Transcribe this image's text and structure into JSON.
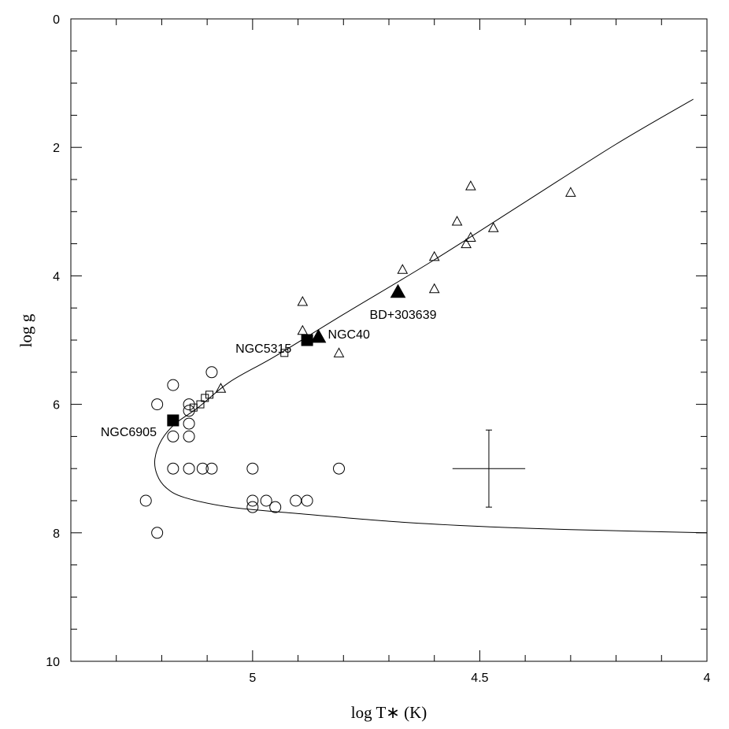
{
  "chart_data": {
    "type": "scatter",
    "xlabel": "log T∗ (K)",
    "ylabel": "log g",
    "xlim": [
      5.4,
      4.0
    ],
    "ylim": [
      0,
      10
    ],
    "x_ticks": [
      5,
      4.5,
      4
    ],
    "y_ticks": [
      0,
      2,
      4,
      6,
      8,
      10
    ],
    "x_minor_step": 0.1,
    "y_minor_step": 0.5,
    "y_inverted": true,
    "x_inverted": true,
    "grid": false,
    "series": [
      {
        "marker": "open-circle",
        "points": [
          [
            5.21,
            6.0
          ],
          [
            5.175,
            5.7
          ],
          [
            5.14,
            6.0
          ],
          [
            5.14,
            6.1
          ],
          [
            5.14,
            6.3
          ],
          [
            5.14,
            6.5
          ],
          [
            5.175,
            6.5
          ],
          [
            5.09,
            5.5
          ],
          [
            5.175,
            7.0
          ],
          [
            5.14,
            7.0
          ],
          [
            5.11,
            7.0
          ],
          [
            5.09,
            7.0
          ],
          [
            5.0,
            7.0
          ],
          [
            4.81,
            7.0
          ],
          [
            5.235,
            7.5
          ],
          [
            5.0,
            7.5
          ],
          [
            5.0,
            7.6
          ],
          [
            4.97,
            7.5
          ],
          [
            4.95,
            7.6
          ],
          [
            4.905,
            7.5
          ],
          [
            4.88,
            7.5
          ],
          [
            5.21,
            8.0
          ]
        ]
      },
      {
        "marker": "open-square",
        "points": [
          [
            5.13,
            6.05
          ],
          [
            5.115,
            6.0
          ],
          [
            5.105,
            5.9
          ],
          [
            5.095,
            5.85
          ],
          [
            4.93,
            5.2
          ]
        ]
      },
      {
        "marker": "open-triangle",
        "points": [
          [
            4.52,
            2.6
          ],
          [
            4.3,
            2.7
          ],
          [
            4.55,
            3.15
          ],
          [
            4.47,
            3.25
          ],
          [
            4.52,
            3.4
          ],
          [
            4.53,
            3.5
          ],
          [
            4.6,
            3.7
          ],
          [
            4.67,
            3.9
          ],
          [
            4.6,
            4.2
          ],
          [
            4.89,
            4.4
          ],
          [
            4.89,
            4.85
          ],
          [
            4.81,
            5.2
          ],
          [
            5.07,
            5.75
          ]
        ]
      },
      {
        "marker": "filled-square",
        "points": [
          [
            5.175,
            6.25
          ],
          [
            4.88,
            5.0
          ]
        ]
      },
      {
        "marker": "filled-triangle",
        "points": [
          [
            4.855,
            4.95
          ],
          [
            4.68,
            4.25
          ]
        ]
      }
    ],
    "annotations": [
      {
        "text": "NGC6905",
        "x": 5.18,
        "y": 6.25
      },
      {
        "text": "NGC5315",
        "x": 4.89,
        "y": 5.0
      },
      {
        "text": "NGC40",
        "x": 4.855,
        "y": 4.95
      },
      {
        "text": "BD+303639",
        "x": 4.68,
        "y": 4.25
      }
    ],
    "track": [
      [
        4.03,
        1.25
      ],
      [
        4.2,
        1.95
      ],
      [
        4.4,
        2.85
      ],
      [
        4.6,
        3.75
      ],
      [
        4.8,
        4.6
      ],
      [
        4.95,
        5.25
      ],
      [
        5.05,
        5.65
      ],
      [
        5.12,
        6.05
      ],
      [
        5.17,
        6.3
      ],
      [
        5.2,
        6.55
      ],
      [
        5.215,
        6.85
      ],
      [
        5.21,
        7.1
      ],
      [
        5.19,
        7.3
      ],
      [
        5.15,
        7.45
      ],
      [
        5.05,
        7.6
      ],
      [
        4.9,
        7.7
      ],
      [
        4.7,
        7.82
      ],
      [
        4.5,
        7.9
      ],
      [
        4.3,
        7.95
      ],
      [
        4.0,
        8.0
      ]
    ],
    "error_bar": {
      "x": 4.48,
      "y": 7.0,
      "dx": 0.08,
      "dy_low": 6.4,
      "dy_high": 7.6
    }
  }
}
